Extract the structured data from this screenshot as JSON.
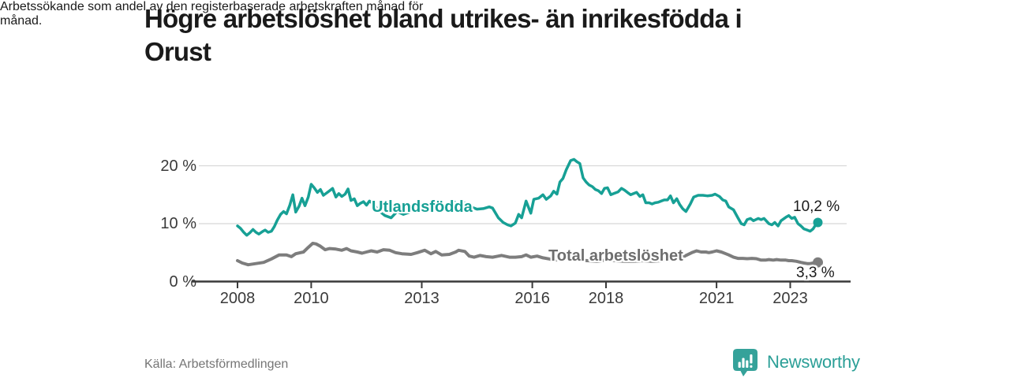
{
  "header": {
    "title": "Högre arbetslöshet bland utrikes- än inrikesfödda i Orust",
    "title_lines": [
      "Högre arbetslöshet bland utrikes- än inrikesfödda i",
      "Orust"
    ],
    "subtitle": "Arbetssökande som andel av den registerbaserade arbetskraften månad för månad.",
    "subtitle_lines": [
      "Arbetssökande som andel av den registerbaserade arbetskraften månad för",
      "månad."
    ]
  },
  "footer": {
    "source": "Källa: Arbetsförmedlingen",
    "brand": "Newsworthy",
    "brand_icon": "speech-bubble-bar-chart-icon"
  },
  "colors": {
    "foreign_line": "#17a095",
    "total_line": "#7d7d7d",
    "total_label": "#6e6e6e",
    "grid": "#d8d8d8",
    "axis": "#3a3a3a",
    "tick_text": "#3a3a3a",
    "text": "#1a1a1a",
    "muted": "#757575",
    "brand": "#2b9f97",
    "background": "#ffffff"
  },
  "chart_data": {
    "type": "line",
    "title": "Högre arbetslöshet bland utrikes- än inrikesfödda i Orust",
    "subtitle": "Arbetssökande som andel av den registerbaserade arbetskraften månad för månad.",
    "xlabel": "",
    "ylabel": "",
    "grid": "horizontal",
    "legend_position": "inline-labels",
    "xlim": [
      2007.9,
      2024.6
    ],
    "ylim": [
      0,
      22
    ],
    "xticks": [
      {
        "value": 2008,
        "label": "2008"
      },
      {
        "value": 2010,
        "label": "2010"
      },
      {
        "value": 2013,
        "label": "2013"
      },
      {
        "value": 2016,
        "label": "2016"
      },
      {
        "value": 2018,
        "label": "2018"
      },
      {
        "value": 2021,
        "label": "2021"
      },
      {
        "value": 2023,
        "label": "2023"
      }
    ],
    "yticks": [
      {
        "value": 0,
        "label": "0 %"
      },
      {
        "value": 10,
        "label": "10 %"
      },
      {
        "value": 20,
        "label": "20 %"
      }
    ],
    "series": [
      {
        "name": "Utlandsfödda",
        "color": "#17a095",
        "line_width": 3.5,
        "end_value": 10.2,
        "end_label": "10,2 %",
        "points": [
          [
            2008.0,
            9.6
          ],
          [
            2008.08,
            9.2
          ],
          [
            2008.17,
            8.5
          ],
          [
            2008.25,
            8.0
          ],
          [
            2008.33,
            8.4
          ],
          [
            2008.42,
            9.0
          ],
          [
            2008.5,
            8.5
          ],
          [
            2008.58,
            8.2
          ],
          [
            2008.67,
            8.6
          ],
          [
            2008.75,
            8.9
          ],
          [
            2008.83,
            8.5
          ],
          [
            2008.92,
            8.7
          ],
          [
            2009.0,
            9.5
          ],
          [
            2009.08,
            10.6
          ],
          [
            2009.17,
            11.6
          ],
          [
            2009.25,
            12.1
          ],
          [
            2009.33,
            11.7
          ],
          [
            2009.42,
            13.2
          ],
          [
            2009.5,
            15.0
          ],
          [
            2009.58,
            12.0
          ],
          [
            2009.67,
            13.0
          ],
          [
            2009.75,
            14.4
          ],
          [
            2009.83,
            13.1
          ],
          [
            2009.92,
            14.6
          ],
          [
            2010.0,
            16.8
          ],
          [
            2010.08,
            16.2
          ],
          [
            2010.17,
            15.4
          ],
          [
            2010.25,
            15.9
          ],
          [
            2010.33,
            14.9
          ],
          [
            2010.42,
            15.3
          ],
          [
            2010.5,
            15.7
          ],
          [
            2010.58,
            16.1
          ],
          [
            2010.67,
            14.6
          ],
          [
            2010.75,
            15.2
          ],
          [
            2010.83,
            14.7
          ],
          [
            2010.92,
            15.1
          ],
          [
            2011.0,
            16.0
          ],
          [
            2011.08,
            14.0
          ],
          [
            2011.17,
            14.3
          ],
          [
            2011.25,
            13.1
          ],
          [
            2011.33,
            13.5
          ],
          [
            2011.42,
            13.8
          ],
          [
            2011.5,
            13.2
          ],
          [
            2011.58,
            13.9
          ],
          [
            2011.67,
            13.5
          ],
          [
            2011.75,
            12.9
          ],
          [
            2011.83,
            12.3
          ],
          [
            2011.92,
            11.8
          ],
          [
            2012.0,
            11.4
          ],
          [
            2012.17,
            11.0
          ],
          [
            2012.33,
            12.1
          ],
          [
            2012.5,
            11.6
          ],
          [
            2012.67,
            12.0
          ],
          [
            2012.83,
            12.5
          ],
          [
            2013.0,
            13.2
          ],
          [
            2013.17,
            12.6
          ],
          [
            2013.33,
            12.2
          ],
          [
            2013.5,
            12.6
          ],
          [
            2013.67,
            13.1
          ],
          [
            2013.83,
            13.9
          ],
          [
            2014.0,
            13.3
          ],
          [
            2014.17,
            13.6
          ],
          [
            2014.33,
            12.9
          ],
          [
            2014.5,
            12.5
          ],
          [
            2014.67,
            12.6
          ],
          [
            2014.83,
            12.9
          ],
          [
            2014.92,
            12.7
          ],
          [
            2015.08,
            11.0
          ],
          [
            2015.21,
            10.2
          ],
          [
            2015.33,
            9.8
          ],
          [
            2015.42,
            9.6
          ],
          [
            2015.54,
            10.1
          ],
          [
            2015.63,
            11.6
          ],
          [
            2015.71,
            11.0
          ],
          [
            2015.83,
            13.9
          ],
          [
            2015.96,
            11.8
          ],
          [
            2016.04,
            14.2
          ],
          [
            2016.17,
            14.4
          ],
          [
            2016.29,
            15.0
          ],
          [
            2016.38,
            14.2
          ],
          [
            2016.5,
            14.8
          ],
          [
            2016.58,
            15.6
          ],
          [
            2016.67,
            15.1
          ],
          [
            2016.75,
            17.2
          ],
          [
            2016.83,
            17.8
          ],
          [
            2016.92,
            19.3
          ],
          [
            2017.04,
            20.9
          ],
          [
            2017.13,
            21.1
          ],
          [
            2017.21,
            20.7
          ],
          [
            2017.29,
            20.4
          ],
          [
            2017.38,
            17.9
          ],
          [
            2017.46,
            17.2
          ],
          [
            2017.54,
            16.7
          ],
          [
            2017.63,
            16.4
          ],
          [
            2017.71,
            15.9
          ],
          [
            2017.79,
            15.7
          ],
          [
            2017.88,
            15.2
          ],
          [
            2017.96,
            16.1
          ],
          [
            2018.04,
            16.2
          ],
          [
            2018.13,
            15.0
          ],
          [
            2018.21,
            15.2
          ],
          [
            2018.33,
            15.5
          ],
          [
            2018.42,
            16.1
          ],
          [
            2018.5,
            15.8
          ],
          [
            2018.58,
            15.4
          ],
          [
            2018.67,
            15.0
          ],
          [
            2018.75,
            15.2
          ],
          [
            2018.83,
            15.4
          ],
          [
            2018.92,
            14.7
          ],
          [
            2019.0,
            15.0
          ],
          [
            2019.08,
            13.6
          ],
          [
            2019.17,
            13.6
          ],
          [
            2019.25,
            13.4
          ],
          [
            2019.33,
            13.6
          ],
          [
            2019.42,
            13.7
          ],
          [
            2019.5,
            13.9
          ],
          [
            2019.58,
            14.1
          ],
          [
            2019.67,
            14.1
          ],
          [
            2019.75,
            14.8
          ],
          [
            2019.83,
            13.6
          ],
          [
            2019.92,
            14.3
          ],
          [
            2020.0,
            13.3
          ],
          [
            2020.08,
            12.6
          ],
          [
            2020.17,
            12.1
          ],
          [
            2020.29,
            13.4
          ],
          [
            2020.38,
            14.6
          ],
          [
            2020.5,
            14.9
          ],
          [
            2020.63,
            14.9
          ],
          [
            2020.75,
            14.8
          ],
          [
            2020.88,
            14.9
          ],
          [
            2020.96,
            15.1
          ],
          [
            2021.08,
            14.7
          ],
          [
            2021.17,
            14.1
          ],
          [
            2021.25,
            13.9
          ],
          [
            2021.33,
            12.9
          ],
          [
            2021.46,
            12.4
          ],
          [
            2021.58,
            11.0
          ],
          [
            2021.67,
            10.0
          ],
          [
            2021.75,
            9.8
          ],
          [
            2021.83,
            10.7
          ],
          [
            2021.92,
            10.9
          ],
          [
            2022.0,
            10.5
          ],
          [
            2022.13,
            10.9
          ],
          [
            2022.21,
            10.7
          ],
          [
            2022.29,
            10.9
          ],
          [
            2022.42,
            10.0
          ],
          [
            2022.5,
            9.8
          ],
          [
            2022.58,
            10.2
          ],
          [
            2022.67,
            9.6
          ],
          [
            2022.75,
            10.5
          ],
          [
            2022.88,
            11.1
          ],
          [
            2022.96,
            11.4
          ],
          [
            2023.04,
            10.9
          ],
          [
            2023.12,
            11.1
          ],
          [
            2023.21,
            10.0
          ],
          [
            2023.29,
            9.6
          ],
          [
            2023.37,
            9.1
          ],
          [
            2023.46,
            8.9
          ],
          [
            2023.54,
            8.7
          ],
          [
            2023.62,
            9.1
          ],
          [
            2023.69,
            9.8
          ],
          [
            2023.75,
            10.2
          ]
        ]
      },
      {
        "name": "Total arbetslöshet",
        "color": "#7d7d7d",
        "line_width": 4,
        "end_value": 3.3,
        "end_label": "3,3 %",
        "points": [
          [
            2008.0,
            3.6
          ],
          [
            2008.13,
            3.2
          ],
          [
            2008.29,
            2.9
          ],
          [
            2008.5,
            3.1
          ],
          [
            2008.71,
            3.3
          ],
          [
            2008.92,
            3.9
          ],
          [
            2009.13,
            4.6
          ],
          [
            2009.33,
            4.6
          ],
          [
            2009.46,
            4.3
          ],
          [
            2009.58,
            4.8
          ],
          [
            2009.79,
            5.1
          ],
          [
            2009.92,
            5.9
          ],
          [
            2010.04,
            6.6
          ],
          [
            2010.13,
            6.5
          ],
          [
            2010.25,
            6.1
          ],
          [
            2010.38,
            5.5
          ],
          [
            2010.5,
            5.7
          ],
          [
            2010.67,
            5.6
          ],
          [
            2010.83,
            5.4
          ],
          [
            2010.96,
            5.7
          ],
          [
            2011.08,
            5.3
          ],
          [
            2011.25,
            5.1
          ],
          [
            2011.38,
            4.9
          ],
          [
            2011.5,
            5.1
          ],
          [
            2011.63,
            5.3
          ],
          [
            2011.79,
            5.1
          ],
          [
            2011.96,
            5.5
          ],
          [
            2012.13,
            5.4
          ],
          [
            2012.29,
            5.0
          ],
          [
            2012.46,
            4.8
          ],
          [
            2012.71,
            4.7
          ],
          [
            2012.88,
            5.0
          ],
          [
            2013.08,
            5.4
          ],
          [
            2013.25,
            4.8
          ],
          [
            2013.38,
            5.2
          ],
          [
            2013.54,
            4.6
          ],
          [
            2013.75,
            4.7
          ],
          [
            2013.92,
            5.1
          ],
          [
            2014.0,
            5.4
          ],
          [
            2014.17,
            5.2
          ],
          [
            2014.29,
            4.4
          ],
          [
            2014.42,
            4.2
          ],
          [
            2014.58,
            4.5
          ],
          [
            2014.75,
            4.3
          ],
          [
            2014.92,
            4.2
          ],
          [
            2015.08,
            4.4
          ],
          [
            2015.17,
            4.5
          ],
          [
            2015.38,
            4.2
          ],
          [
            2015.54,
            4.2
          ],
          [
            2015.71,
            4.3
          ],
          [
            2015.83,
            4.6
          ],
          [
            2015.96,
            4.2
          ],
          [
            2016.13,
            4.4
          ],
          [
            2016.29,
            4.1
          ],
          [
            2016.46,
            3.9
          ],
          [
            2016.58,
            3.7
          ],
          [
            2016.83,
            3.8
          ],
          [
            2017.0,
            3.9
          ],
          [
            2017.25,
            3.7
          ],
          [
            2017.5,
            3.6
          ],
          [
            2017.75,
            3.5
          ],
          [
            2018.0,
            3.7
          ],
          [
            2018.25,
            3.6
          ],
          [
            2018.5,
            3.5
          ],
          [
            2018.75,
            3.5
          ],
          [
            2019.0,
            3.6
          ],
          [
            2019.25,
            3.5
          ],
          [
            2019.5,
            3.6
          ],
          [
            2019.75,
            3.7
          ],
          [
            2020.0,
            3.9
          ],
          [
            2020.17,
            4.5
          ],
          [
            2020.33,
            5.0
          ],
          [
            2020.46,
            5.3
          ],
          [
            2020.58,
            5.1
          ],
          [
            2020.71,
            5.1
          ],
          [
            2020.79,
            5.0
          ],
          [
            2020.88,
            5.1
          ],
          [
            2021.0,
            5.3
          ],
          [
            2021.13,
            5.1
          ],
          [
            2021.25,
            4.8
          ],
          [
            2021.33,
            4.6
          ],
          [
            2021.46,
            4.2
          ],
          [
            2021.58,
            4.0
          ],
          [
            2021.71,
            4.0
          ],
          [
            2021.83,
            3.95
          ],
          [
            2021.96,
            4.0
          ],
          [
            2022.08,
            3.95
          ],
          [
            2022.21,
            3.7
          ],
          [
            2022.33,
            3.7
          ],
          [
            2022.42,
            3.8
          ],
          [
            2022.54,
            3.7
          ],
          [
            2022.63,
            3.8
          ],
          [
            2022.75,
            3.7
          ],
          [
            2022.88,
            3.7
          ],
          [
            2022.96,
            3.6
          ],
          [
            2023.04,
            3.6
          ],
          [
            2023.17,
            3.5
          ],
          [
            2023.29,
            3.3
          ],
          [
            2023.37,
            3.2
          ],
          [
            2023.46,
            3.1
          ],
          [
            2023.54,
            3.1
          ],
          [
            2023.62,
            3.2
          ],
          [
            2023.69,
            3.4
          ],
          [
            2023.75,
            3.3
          ]
        ]
      }
    ]
  }
}
